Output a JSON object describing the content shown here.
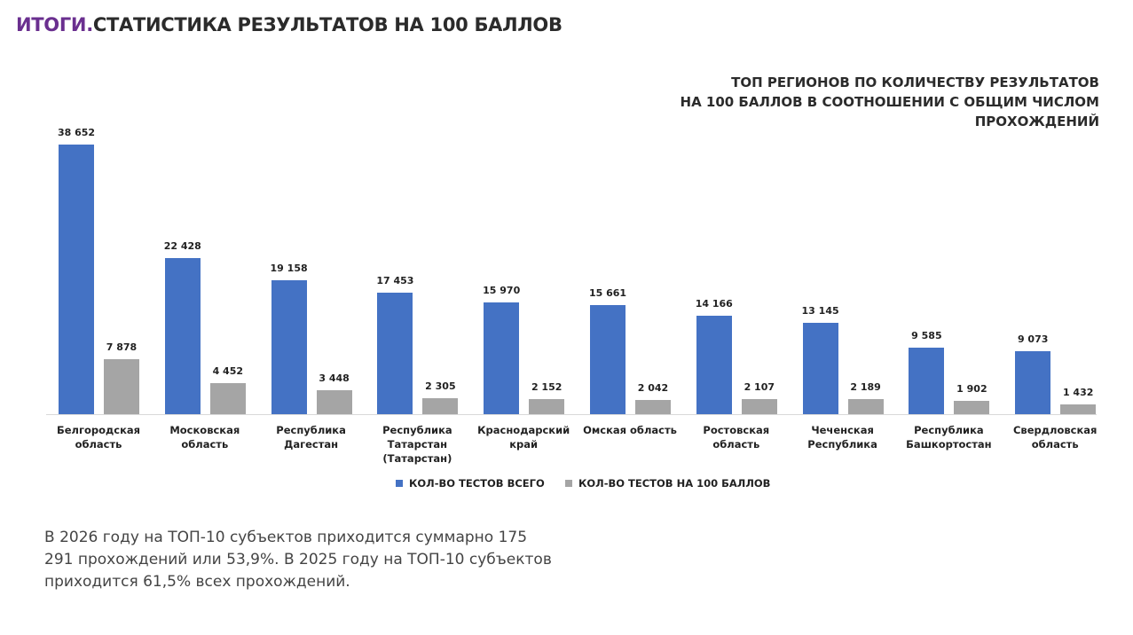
{
  "chart_data": {
    "type": "bar",
    "title_prefix": "ИТОГИ.",
    "title": "СТАТИСТИКА РЕЗУЛЬТАТОВ НА 100 БАЛЛОВ",
    "subtitle_lines": [
      "ТОП РЕГИОНОВ ПО КОЛИЧЕСТВУ РЕЗУЛЬТАТОВ",
      "НА 100 БАЛЛОВ В СООТНОШЕНИИ С ОБЩИМ ЧИСЛОМ",
      "ПРОХОЖДЕНИЙ"
    ],
    "categories": [
      "Белгородская область",
      "Московская область",
      "Республика Дагестан",
      "Республика Татарстан (Татарстан)",
      "Краснодарский край",
      "Омская область",
      "Ростовская область",
      "Чеченская Республика",
      "Республика Башкортостан",
      "Свердловская область"
    ],
    "series": [
      {
        "name": "КОЛ-ВО ТЕСТОВ ВСЕГО",
        "color": "#4472c4",
        "values": [
          38652,
          22428,
          19158,
          17453,
          15970,
          15661,
          14166,
          13145,
          9585,
          9073
        ],
        "value_labels": [
          "38 652",
          "22 428",
          "19 158",
          "17 453",
          "15 970",
          "15 661",
          "14 166",
          "13 145",
          "9 585",
          "9 073"
        ]
      },
      {
        "name": "КОЛ-ВО ТЕСТОВ НА 100 БАЛЛОВ",
        "color": "#a5a5a5",
        "values": [
          7878,
          4452,
          3448,
          2305,
          2152,
          2042,
          2107,
          2189,
          1902,
          1432
        ],
        "value_labels": [
          "7 878",
          "4 452",
          "3 448",
          "2 305",
          "2 152",
          "2 042",
          "2 107",
          "2 189",
          "1 902",
          "1 432"
        ]
      }
    ],
    "note": "В 2026 году на ТОП-10 субъектов приходится суммарно 175 291 прохождений или 53,9%. В 2025 году на ТОП-10 субъектов приходится 61,5% всех прохождений."
  }
}
